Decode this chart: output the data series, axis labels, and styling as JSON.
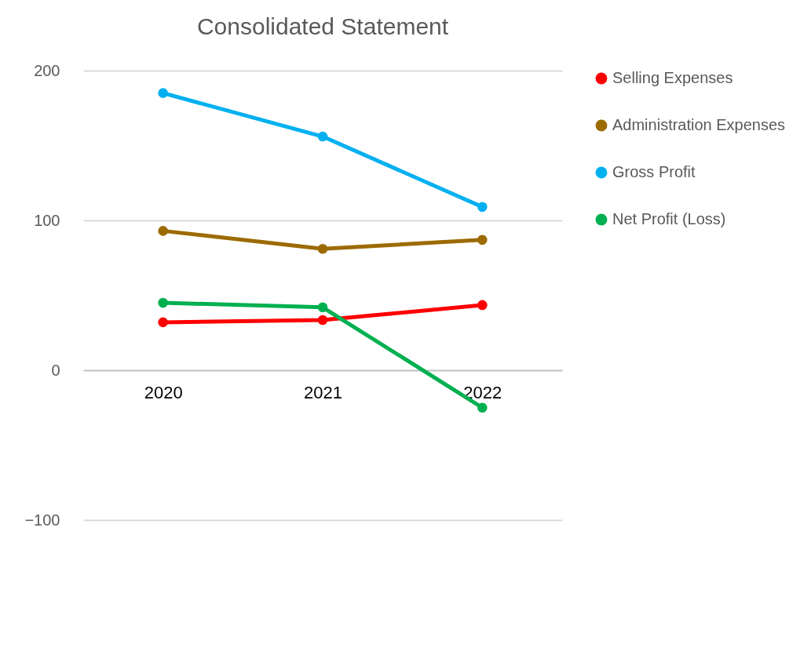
{
  "chart_data": {
    "type": "line",
    "title": "Consolidated Statement",
    "categories": [
      "2020",
      "2021",
      "2022"
    ],
    "series": [
      {
        "name": "Selling Expenses",
        "color": "#ff0000",
        "values": [
          32,
          33.5,
          43.5
        ]
      },
      {
        "name": "Administration Expenses",
        "color": "#9c6b00",
        "values": [
          93,
          81,
          87
        ]
      },
      {
        "name": "Gross Profit",
        "color": "#00b0f0",
        "values": [
          185,
          156,
          109
        ]
      },
      {
        "name": "Net Profit (Loss)",
        "color": "#00b050",
        "values": [
          45,
          42,
          -25
        ]
      }
    ],
    "ylim": [
      -100,
      200
    ],
    "yticks": [
      -100,
      0,
      100,
      200
    ],
    "grid": "y",
    "legend": "right",
    "marker": "circle",
    "line_style": "solid"
  }
}
